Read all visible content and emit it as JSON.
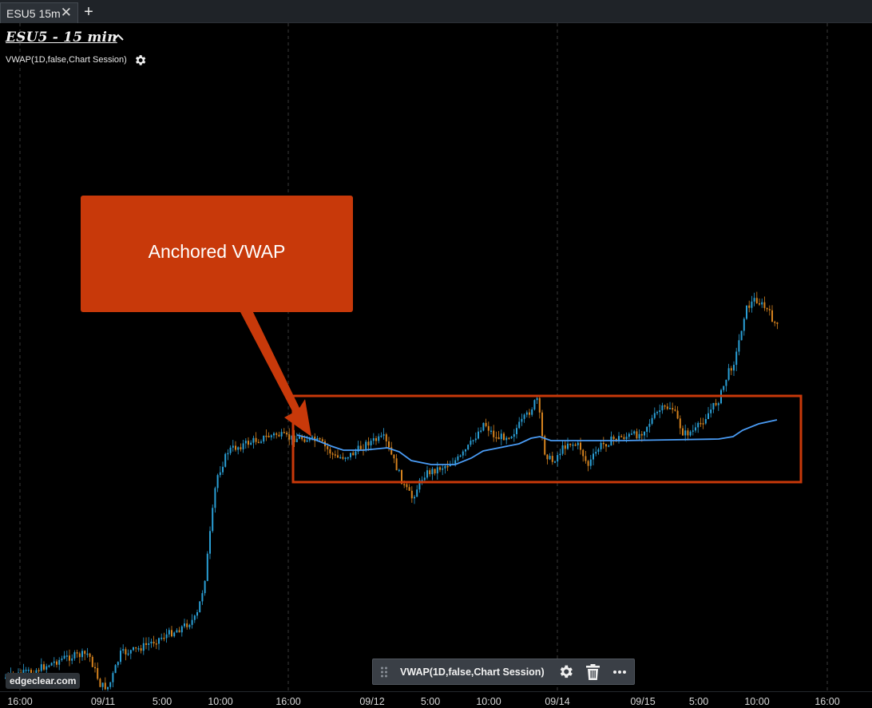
{
  "tab": {
    "label": "ESU5 15m",
    "close_glyph": "✕",
    "add_glyph": "+"
  },
  "chart": {
    "title": "ESU5 - 15 min",
    "indicator_label": "VWAP(1D,false,Chart Session)",
    "callout_text": "Anchored VWAP",
    "watermark": "edgeclear.com",
    "colors": {
      "up": "#2a9fd6",
      "down": "#d6831e",
      "vwap": "#4a9cf5",
      "annotation": "#c8390a",
      "grid": "#3a3a3a"
    }
  },
  "toolbar": {
    "indicator_name": "VWAP(1D,false,Chart Session)",
    "icons": [
      "drag-handle-icon",
      "gear-icon",
      "trash-icon",
      "more-icon"
    ]
  },
  "xaxis": {
    "ticks": [
      "16:00",
      "09/11",
      "5:00",
      "10:00",
      "16:00",
      "09/12",
      "5:00",
      "10:00",
      "09/14",
      "09/15",
      "5:00",
      "10:00",
      "16:00"
    ]
  },
  "chart_data": {
    "type": "candlestick",
    "title": "ESU5 - 15 min",
    "x_ticks": [
      "16:00",
      "09/11",
      "5:00",
      "10:00",
      "16:00",
      "09/12",
      "5:00",
      "10:00",
      "09/14",
      "09/15",
      "5:00",
      "10:00",
      "16:00"
    ],
    "series": [
      {
        "name": "VWAP(1D,false,Chart Session)",
        "type": "line"
      }
    ],
    "annotations": [
      "Anchored VWAP"
    ],
    "grid": "vertical-dashed"
  }
}
